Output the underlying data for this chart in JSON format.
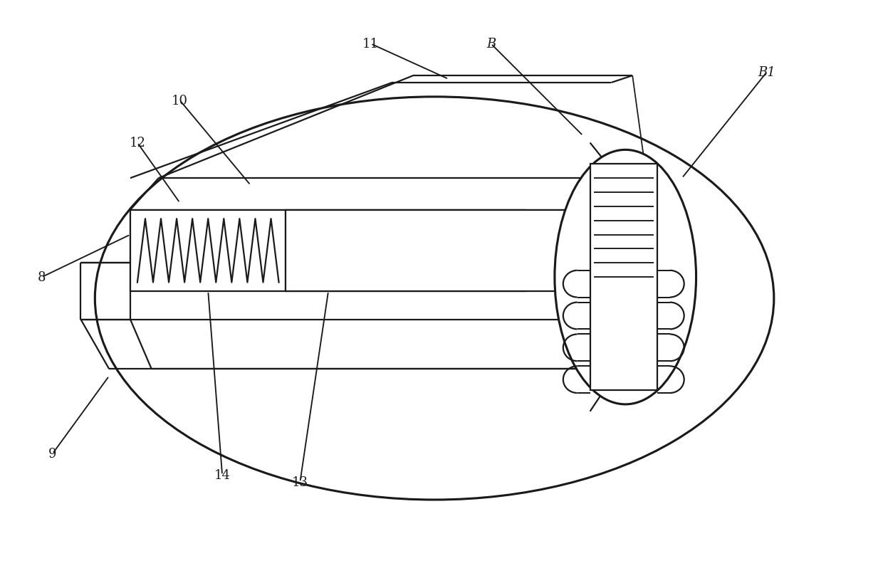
{
  "bg_color": "#ffffff",
  "line_color": "#1a1a1a",
  "line_width": 1.6,
  "fig_width": 12.4,
  "fig_height": 8.2,
  "dpi": 100
}
